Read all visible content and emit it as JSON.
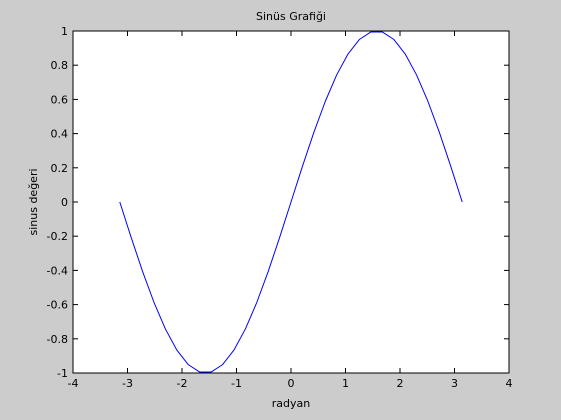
{
  "chart_data": {
    "type": "line",
    "title": "Sinüs Grafiği",
    "xlabel": "radyan",
    "ylabel": "sinus değeri",
    "xlim": [
      -4,
      4
    ],
    "ylim": [
      -1,
      1
    ],
    "grid": false,
    "xticks": [
      -4,
      -3,
      -2,
      -1,
      0,
      1,
      2,
      3,
      4
    ],
    "xtick_labels": [
      "-4",
      "-3",
      "-2",
      "-1",
      "0",
      "1",
      "2",
      "3",
      "4"
    ],
    "yticks": [
      -1,
      -0.8,
      -0.6,
      -0.4,
      -0.2,
      0,
      0.2,
      0.4,
      0.6,
      0.8,
      1
    ],
    "ytick_labels": [
      "-1",
      "-0.8",
      "-0.6",
      "-0.4",
      "-0.2",
      "0",
      "0.2",
      "0.4",
      "0.6",
      "0.8",
      "1"
    ],
    "series": [
      {
        "color": "#0000ff",
        "x": [
          -3.1416,
          -2.9322,
          -2.7227,
          -2.5133,
          -2.3038,
          -2.0944,
          -1.885,
          -1.6755,
          -1.4661,
          -1.2566,
          -1.0472,
          -0.8378,
          -0.6283,
          -0.4189,
          -0.2094,
          0,
          0.2094,
          0.4189,
          0.6283,
          0.8378,
          1.0472,
          1.2566,
          1.4661,
          1.6755,
          1.885,
          2.0944,
          2.3038,
          2.5133,
          2.7227,
          2.9322,
          3.1416
        ],
        "y": [
          0,
          -0.2079,
          -0.4067,
          -0.5878,
          -0.7431,
          -0.866,
          -0.9511,
          -0.9945,
          -0.9945,
          -0.9511,
          -0.866,
          -0.7431,
          -0.5878,
          -0.4067,
          -0.2079,
          0,
          0.2079,
          0.4067,
          0.5878,
          0.7431,
          0.866,
          0.9511,
          0.9945,
          0.9945,
          0.9511,
          0.866,
          0.7431,
          0.5878,
          0.4067,
          0.2079,
          0
        ]
      }
    ]
  }
}
